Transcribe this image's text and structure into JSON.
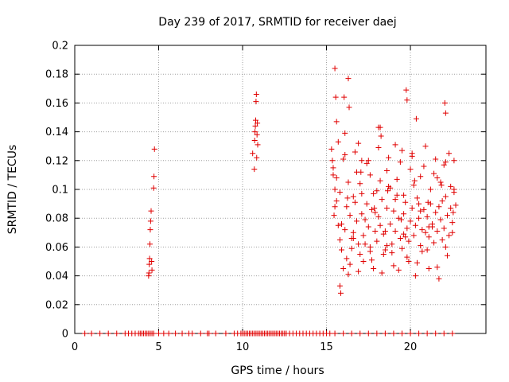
{
  "chart_data": {
    "type": "scatter",
    "title": "Day 239 of 2017, SRMTID for receiver daej",
    "xlabel": "GPS time / hours",
    "ylabel": "SRMTID / TECUs",
    "xlim": [
      0,
      24.5
    ],
    "ylim": [
      0,
      0.2
    ],
    "xticks": [
      0,
      5,
      10,
      15,
      20
    ],
    "xtick_labels": [
      "0",
      "5",
      "10",
      "15",
      "20"
    ],
    "yticks": [
      0,
      0.02,
      0.04,
      0.06,
      0.08,
      0.1,
      0.12,
      0.14,
      0.16,
      0.18,
      0.2
    ],
    "ytick_labels": [
      "0",
      "0.02",
      "0.04",
      "0.06",
      "0.08",
      "0.1",
      "0.12",
      "0.14",
      "0.16",
      "0.18",
      "0.2"
    ],
    "grid": true,
    "marker": "+",
    "marker_color": "#e00000",
    "series": [
      {
        "name": "SRMTID",
        "x": [
          4.4,
          4.42,
          4.44,
          4.46,
          4.48,
          4.5,
          4.52,
          4.55,
          4.58,
          4.6,
          4.7,
          4.72,
          4.75,
          10.6,
          10.7,
          10.72,
          10.74,
          10.76,
          10.78,
          10.8,
          10.82,
          10.84,
          10.86,
          10.88,
          10.9,
          15.3,
          15.35,
          15.4,
          15.5,
          15.6,
          15.7,
          15.8,
          15.9,
          16.0,
          16.1,
          16.2,
          16.3,
          16.4,
          16.5,
          16.6,
          16.7,
          16.8,
          16.9,
          17.0,
          17.1,
          17.2,
          17.3,
          17.4,
          17.5,
          17.6,
          17.7,
          17.8,
          17.9,
          18.0,
          18.1,
          18.2,
          18.3,
          18.4,
          18.5,
          18.6,
          18.7,
          18.8,
          18.9,
          19.0,
          19.1,
          19.2,
          19.3,
          19.4,
          19.5,
          19.6,
          19.7,
          19.8,
          19.9,
          20.0,
          20.1,
          20.2,
          20.3,
          20.4,
          20.5,
          20.6,
          20.7,
          20.8,
          20.9,
          21.0,
          21.1,
          21.2,
          21.3,
          21.4,
          21.5,
          21.6,
          21.7,
          21.8,
          21.9,
          22.0,
          22.1,
          22.2,
          22.3,
          22.4,
          22.5,
          22.6,
          22.7,
          15.4,
          15.6,
          15.8,
          16.0,
          16.2,
          16.4,
          16.6,
          16.8,
          17.0,
          17.2,
          17.4,
          17.6,
          17.8,
          18.0,
          18.2,
          18.4,
          18.6,
          18.8,
          19.0,
          19.2,
          19.4,
          19.6,
          19.8,
          20.0,
          20.2,
          20.4,
          20.6,
          20.8,
          21.0,
          21.2,
          21.4,
          21.6,
          21.8,
          22.0,
          22.2,
          22.4,
          22.6,
          15.5,
          15.7,
          15.9,
          16.1,
          16.3,
          16.5,
          16.7,
          16.9,
          17.1,
          17.3,
          17.5,
          17.7,
          17.9,
          18.1,
          18.3,
          18.5,
          18.7,
          18.9,
          19.1,
          19.3,
          19.5,
          19.7,
          19.9,
          20.1,
          20.3,
          20.5,
          20.7,
          20.9,
          21.1,
          21.3,
          21.5,
          21.7,
          21.9,
          22.1,
          22.3,
          22.5,
          15.6,
          16.1,
          16.6,
          17.1,
          17.6,
          18.1,
          18.6,
          19.1,
          19.6,
          20.1,
          20.6,
          21.1,
          21.6,
          22.1,
          22.6,
          15.45,
          16.25,
          17.05,
          17.85,
          18.65,
          19.45,
          20.25,
          21.05,
          21.85,
          22.55,
          15.5,
          15.55,
          16.3,
          16.35,
          15.8,
          15.85,
          16.05,
          19.75,
          19.8,
          20.35,
          22.05,
          22.1,
          16.9,
          18.2,
          18.25,
          0.6,
          1.0,
          1.5,
          2.0,
          2.5,
          3.0,
          3.2,
          3.4,
          3.6,
          3.8,
          3.9,
          4.0,
          4.1,
          4.2,
          4.3,
          4.4,
          4.5,
          4.6,
          4.7,
          5.0,
          5.3,
          5.6,
          6.0,
          6.4,
          6.8,
          7.0,
          7.5,
          7.9,
          8.0,
          8.4,
          9.0,
          9.5,
          9.7,
          9.9,
          10.0,
          10.1,
          10.2,
          10.3,
          10.4,
          10.5,
          10.6,
          10.7,
          10.8,
          10.9,
          11.0,
          11.1,
          11.2,
          11.3,
          11.4,
          11.5,
          11.6,
          11.7,
          11.8,
          11.9,
          12.0,
          12.1,
          12.2,
          12.3,
          12.4,
          12.5,
          12.6,
          12.8,
          13.0,
          13.2,
          13.4,
          13.6,
          13.8,
          14.0,
          14.2,
          14.4,
          14.6,
          14.8,
          15.0,
          15.2,
          15.5,
          16.0,
          16.5,
          17.0,
          17.5,
          18.0,
          18.5,
          19.0,
          19.5,
          20.0,
          20.5,
          21.0,
          21.5,
          22.0,
          22.5
        ],
        "y": [
          0.04,
          0.042,
          0.048,
          0.052,
          0.062,
          0.072,
          0.078,
          0.085,
          0.05,
          0.044,
          0.101,
          0.109,
          0.128,
          0.125,
          0.114,
          0.134,
          0.14,
          0.144,
          0.148,
          0.161,
          0.166,
          0.122,
          0.138,
          0.146,
          0.131,
          0.128,
          0.12,
          0.11,
          0.1,
          0.092,
          0.075,
          0.065,
          0.058,
          0.045,
          0.072,
          0.088,
          0.105,
          0.082,
          0.066,
          0.07,
          0.091,
          0.078,
          0.062,
          0.055,
          0.083,
          0.068,
          0.079,
          0.09,
          0.074,
          0.06,
          0.086,
          0.097,
          0.071,
          0.064,
          0.081,
          0.075,
          0.093,
          0.069,
          0.058,
          0.087,
          0.102,
          0.076,
          0.062,
          0.085,
          0.071,
          0.096,
          0.08,
          0.066,
          0.059,
          0.083,
          0.091,
          0.073,
          0.064,
          0.078,
          0.087,
          0.068,
          0.075,
          0.094,
          0.08,
          0.061,
          0.072,
          0.086,
          0.07,
          0.081,
          0.067,
          0.09,
          0.076,
          0.063,
          0.084,
          0.071,
          0.088,
          0.079,
          0.065,
          0.073,
          0.095,
          0.082,
          0.068,
          0.087,
          0.077,
          0.098,
          0.089,
          0.115,
          0.108,
          0.098,
          0.121,
          0.052,
          0.048,
          0.095,
          0.112,
          0.104,
          0.05,
          0.118,
          0.11,
          0.045,
          0.099,
          0.106,
          0.055,
          0.113,
          0.101,
          0.047,
          0.107,
          0.119,
          0.096,
          0.053,
          0.114,
          0.103,
          0.049,
          0.109,
          0.116,
          0.058,
          0.1,
          0.111,
          0.046,
          0.105,
          0.117,
          0.054,
          0.102,
          0.12,
          0.088,
          0.133,
          0.076,
          0.124,
          0.041,
          0.059,
          0.126,
          0.043,
          0.097,
          0.062,
          0.12,
          0.051,
          0.084,
          0.129,
          0.042,
          0.071,
          0.122,
          0.056,
          0.093,
          0.044,
          0.127,
          0.067,
          0.05,
          0.123,
          0.04,
          0.09,
          0.057,
          0.13,
          0.045,
          0.074,
          0.121,
          0.038,
          0.092,
          0.06,
          0.125,
          0.07,
          0.147,
          0.139,
          0.066,
          0.12,
          0.057,
          0.143,
          0.061,
          0.131,
          0.069,
          0.125,
          0.085,
          0.074,
          0.108,
          0.119,
          0.1,
          0.082,
          0.094,
          0.112,
          0.087,
          0.099,
          0.079,
          0.106,
          0.091,
          0.103,
          0.084,
          0.184,
          0.164,
          0.177,
          0.157,
          0.033,
          0.028,
          0.164,
          0.169,
          0.162,
          0.149,
          0.16,
          0.153,
          0.132,
          0.143,
          0.137,
          0,
          0,
          0,
          0,
          0,
          0,
          0,
          0,
          0,
          0,
          0,
          0,
          0,
          0,
          0,
          0,
          0,
          0,
          0,
          0,
          0,
          0,
          0,
          0,
          0,
          0,
          0,
          0,
          0,
          0,
          0,
          0,
          0,
          0,
          0,
          0,
          0,
          0,
          0,
          0,
          0,
          0,
          0,
          0,
          0,
          0,
          0,
          0,
          0,
          0,
          0,
          0,
          0,
          0,
          0,
          0,
          0,
          0,
          0,
          0,
          0,
          0,
          0,
          0,
          0,
          0,
          0,
          0,
          0,
          0,
          0,
          0,
          0,
          0,
          0,
          0,
          0,
          0,
          0,
          0,
          0,
          0,
          0,
          0,
          0,
          0,
          0,
          0,
          0
        ]
      }
    ]
  }
}
